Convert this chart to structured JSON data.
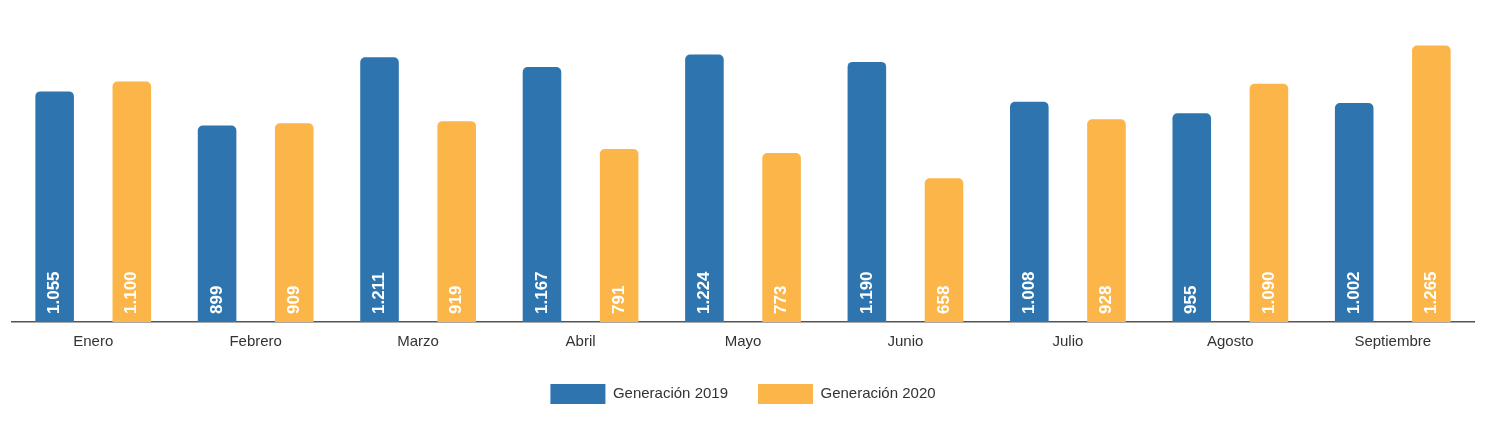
{
  "chart_data": {
    "type": "bar",
    "categories": [
      "Enero",
      "Febrero",
      "Marzo",
      "Abril",
      "Mayo",
      "Junio",
      "Julio",
      "Agosto",
      "Septiembre"
    ],
    "series": [
      {
        "name": "Generación 2019",
        "color": "#2e75b0",
        "values": [
          1055,
          899,
          1211,
          1167,
          1224,
          1190,
          1008,
          955,
          1002
        ],
        "value_labels": [
          "1.055",
          "899",
          "1.211",
          "1.167",
          "1.224",
          "1.190",
          "1.008",
          "955",
          "1.002"
        ]
      },
      {
        "name": "Generación 2020",
        "color": "#fbb548",
        "values": [
          1100,
          909,
          919,
          791,
          773,
          658,
          928,
          1090,
          1265
        ],
        "value_labels": [
          "1.100",
          "909",
          "919",
          "791",
          "773",
          "658",
          "928",
          "1.090",
          "1.265"
        ]
      }
    ],
    "tick_labels": "x",
    "grid": false,
    "legend": "bottom"
  }
}
